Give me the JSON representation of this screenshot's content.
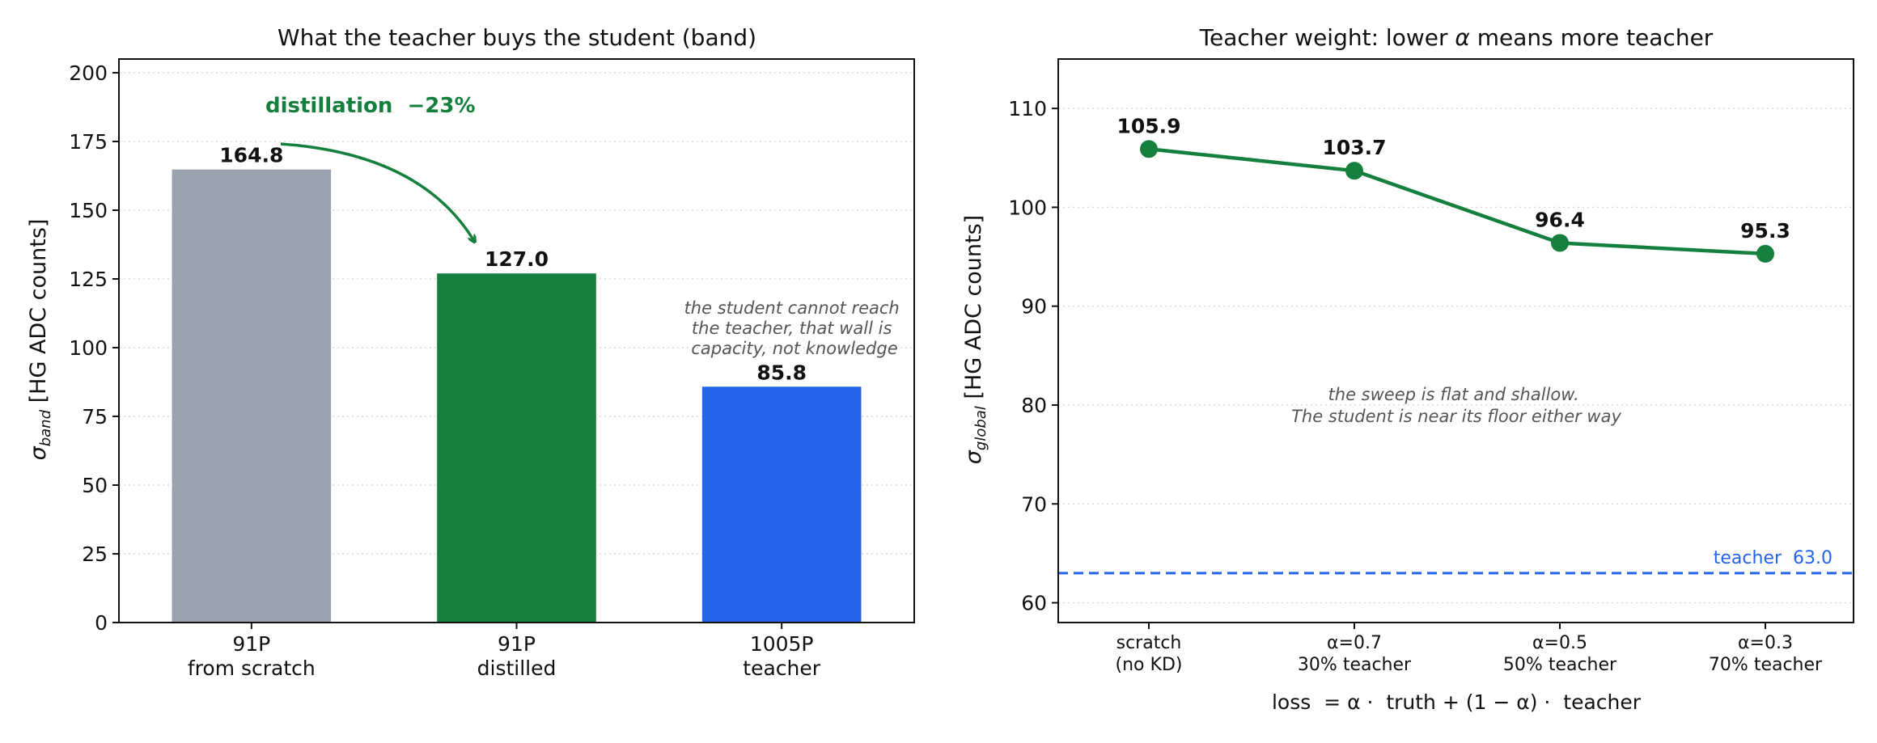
{
  "colors": {
    "gray": "#9aa3ad",
    "green": "#15803d",
    "blue": "#2563eb",
    "note": "#555555"
  },
  "chart_data": [
    {
      "type": "bar",
      "title": "What the teacher buys the student (band)",
      "ylabel_symbol": "σ",
      "ylabel_sub": "band",
      "ylabel_unit": "[HG ADC counts]",
      "ylim": [
        0,
        205
      ],
      "yticks": [
        0,
        25,
        50,
        75,
        100,
        125,
        150,
        175,
        200
      ],
      "grid": true,
      "categories": [
        [
          "91P",
          "from scratch"
        ],
        [
          "91P",
          "distilled"
        ],
        [
          "1005P",
          "teacher"
        ]
      ],
      "values": [
        164.8,
        127.0,
        85.8
      ],
      "bar_colors": [
        "gray",
        "green",
        "blue"
      ],
      "value_labels": [
        "164.8",
        "127.0",
        "85.8"
      ],
      "arrow_annotation": "distillation  −23%",
      "note": [
        "the student cannot reach",
        "the teacher, that wall is",
        "capacity, not knowledge"
      ]
    },
    {
      "type": "line",
      "title_pre": "Teacher weight: lower ",
      "title_alpha": "α",
      "title_post": " means more teacher",
      "ylabel_symbol": "σ",
      "ylabel_sub": "global",
      "ylabel_unit": "[HG ADC counts]",
      "ylim": [
        58,
        115
      ],
      "yticks": [
        60,
        70,
        80,
        90,
        100,
        110
      ],
      "grid": true,
      "categories": [
        [
          "scratch",
          "(no KD)"
        ],
        [
          "α=0.7",
          "30% teacher"
        ],
        [
          "α=0.5",
          "50% teacher"
        ],
        [
          "α=0.3",
          "70% teacher"
        ]
      ],
      "values": [
        105.9,
        103.7,
        96.4,
        95.3
      ],
      "value_labels": [
        "105.9",
        "103.7",
        "96.4",
        "95.3"
      ],
      "series_color": "green",
      "teacher_line": {
        "value": 63.0,
        "label": "teacher  63.0",
        "color": "blue"
      },
      "note": [
        "the sweep is flat and shallow.",
        "The student is near its floor either way"
      ],
      "xlabel": "loss  = α ·  truth + (1 − α) ·  teacher"
    }
  ]
}
